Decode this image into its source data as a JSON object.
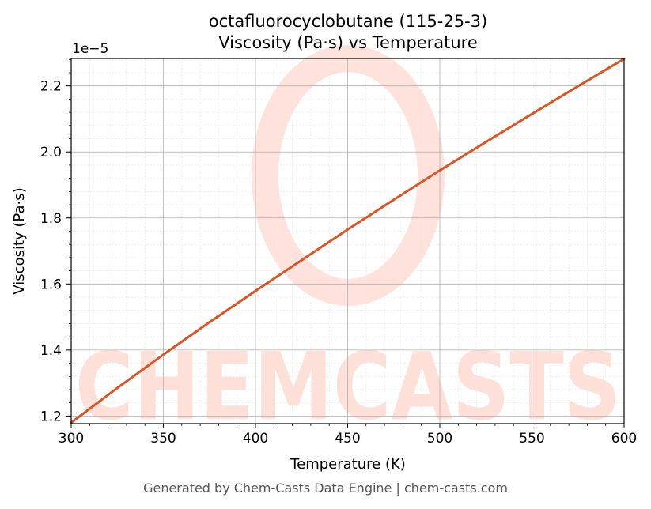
{
  "chart_data": {
    "type": "line",
    "title_line1": "octafluorocyclobutane (115-25-3)",
    "title_line2": "Viscosity (Pa·s) vs Temperature",
    "xlabel": "Temperature (K)",
    "ylabel": "Viscosity (Pa·s)",
    "y_offset_label": "1e−5",
    "xlim": [
      300,
      600
    ],
    "ylim": [
      1.177e-05,
      2.283e-05
    ],
    "x_ticks": [
      "300",
      "350",
      "400",
      "450",
      "500",
      "550",
      "600"
    ],
    "y_ticks": [
      "1.2",
      "1.4",
      "1.6",
      "1.8",
      "2.0",
      "2.2"
    ],
    "grid": true,
    "series": [
      {
        "color": "#d95525",
        "x": [
          300,
          325,
          350,
          375,
          400,
          425,
          450,
          475,
          500,
          525,
          550,
          575,
          600
        ],
        "y": [
          1.18e-05,
          1.285e-05,
          1.386e-05,
          1.484e-05,
          1.579e-05,
          1.672e-05,
          1.765e-05,
          1.855e-05,
          1.944e-05,
          2.03e-05,
          2.115e-05,
          2.199e-05,
          2.282e-05
        ]
      }
    ]
  },
  "watermark": {
    "text": "CHEMCASTS",
    "color": "#ffd6cc"
  },
  "footer": "Generated by Chem-Casts Data Engine | chem-casts.com"
}
